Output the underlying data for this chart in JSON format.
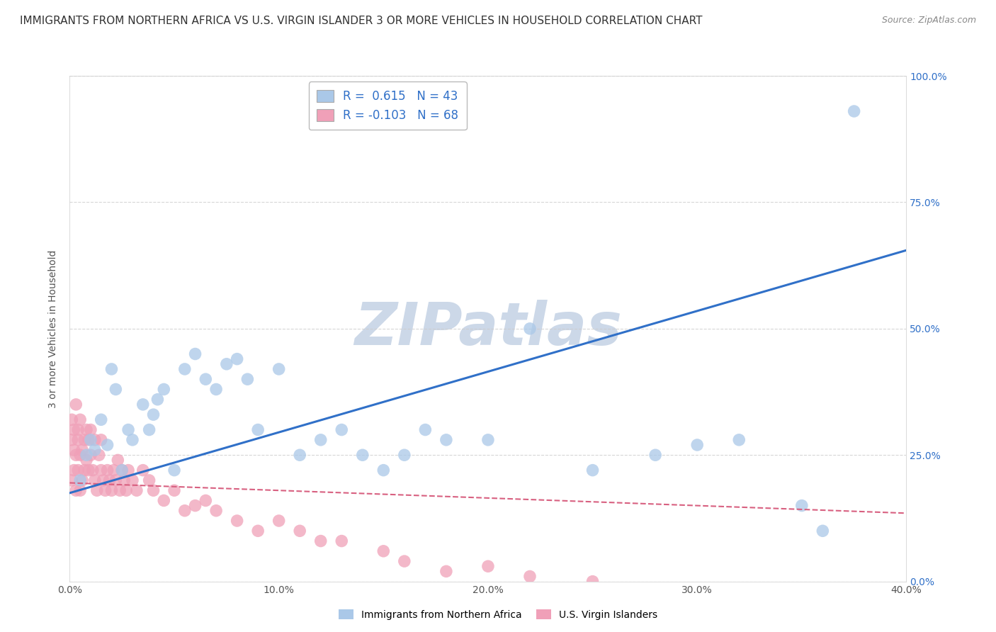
{
  "title": "IMMIGRANTS FROM NORTHERN AFRICA VS U.S. VIRGIN ISLANDER 3 OR MORE VEHICLES IN HOUSEHOLD CORRELATION CHART",
  "source": "Source: ZipAtlas.com",
  "ylabel": "3 or more Vehicles in Household",
  "xlim": [
    0.0,
    0.4
  ],
  "ylim": [
    0.0,
    1.0
  ],
  "xticks": [
    0.0,
    0.1,
    0.2,
    0.3,
    0.4
  ],
  "yticks": [
    0.0,
    0.25,
    0.5,
    0.75,
    1.0
  ],
  "xtick_labels": [
    "0.0%",
    "10.0%",
    "20.0%",
    "30.0%",
    "40.0%"
  ],
  "ytick_labels_right": [
    "0.0%",
    "25.0%",
    "50.0%",
    "75.0%",
    "100.0%"
  ],
  "series1_name": "Immigrants from Northern Africa",
  "series1_color": "#aac8e8",
  "series1_R": "0.615",
  "series1_N": "43",
  "series1_line_color": "#3070c8",
  "series2_name": "U.S. Virgin Islanders",
  "series2_color": "#f0a0b8",
  "series2_R": "-0.103",
  "series2_N": "68",
  "series2_line_color": "#d86080",
  "series2_line_style": "--",
  "background_color": "#ffffff",
  "watermark": "ZIPatlas",
  "watermark_color": "#ccd8e8",
  "grid_color": "#cccccc",
  "grid_style": "--",
  "legend_R_color": "#3070c8",
  "legend_fontsize": 12,
  "title_fontsize": 11,
  "series1_line_x0": 0.0,
  "series1_line_y0": 0.175,
  "series1_line_x1": 0.4,
  "series1_line_y1": 0.655,
  "series2_line_x0": 0.0,
  "series2_line_y0": 0.195,
  "series2_line_x1": 0.4,
  "series2_line_y1": 0.135,
  "series1_x": [
    0.005,
    0.008,
    0.01,
    0.012,
    0.015,
    0.018,
    0.02,
    0.022,
    0.025,
    0.028,
    0.03,
    0.035,
    0.038,
    0.04,
    0.042,
    0.045,
    0.05,
    0.055,
    0.06,
    0.065,
    0.07,
    0.075,
    0.08,
    0.085,
    0.09,
    0.1,
    0.11,
    0.12,
    0.13,
    0.14,
    0.15,
    0.16,
    0.17,
    0.18,
    0.2,
    0.22,
    0.25,
    0.28,
    0.3,
    0.32,
    0.35,
    0.36,
    0.375
  ],
  "series1_y": [
    0.2,
    0.25,
    0.28,
    0.26,
    0.32,
    0.27,
    0.42,
    0.38,
    0.22,
    0.3,
    0.28,
    0.35,
    0.3,
    0.33,
    0.36,
    0.38,
    0.22,
    0.42,
    0.45,
    0.4,
    0.38,
    0.43,
    0.44,
    0.4,
    0.3,
    0.42,
    0.25,
    0.28,
    0.3,
    0.25,
    0.22,
    0.25,
    0.3,
    0.28,
    0.28,
    0.5,
    0.22,
    0.25,
    0.27,
    0.28,
    0.15,
    0.1,
    0.93
  ],
  "series2_x": [
    0.001,
    0.001,
    0.001,
    0.002,
    0.002,
    0.002,
    0.003,
    0.003,
    0.003,
    0.004,
    0.004,
    0.004,
    0.005,
    0.005,
    0.005,
    0.006,
    0.006,
    0.007,
    0.007,
    0.008,
    0.008,
    0.009,
    0.009,
    0.01,
    0.01,
    0.011,
    0.012,
    0.012,
    0.013,
    0.014,
    0.015,
    0.015,
    0.016,
    0.017,
    0.018,
    0.019,
    0.02,
    0.021,
    0.022,
    0.023,
    0.024,
    0.025,
    0.026,
    0.027,
    0.028,
    0.03,
    0.032,
    0.035,
    0.038,
    0.04,
    0.045,
    0.05,
    0.055,
    0.06,
    0.065,
    0.07,
    0.08,
    0.09,
    0.1,
    0.11,
    0.12,
    0.13,
    0.15,
    0.16,
    0.18,
    0.2,
    0.22,
    0.25
  ],
  "series2_y": [
    0.28,
    0.32,
    0.2,
    0.26,
    0.22,
    0.3,
    0.25,
    0.35,
    0.18,
    0.28,
    0.22,
    0.3,
    0.25,
    0.18,
    0.32,
    0.2,
    0.26,
    0.28,
    0.22,
    0.24,
    0.3,
    0.22,
    0.28,
    0.25,
    0.3,
    0.22,
    0.2,
    0.28,
    0.18,
    0.25,
    0.22,
    0.28,
    0.2,
    0.18,
    0.22,
    0.2,
    0.18,
    0.22,
    0.2,
    0.24,
    0.18,
    0.22,
    0.2,
    0.18,
    0.22,
    0.2,
    0.18,
    0.22,
    0.2,
    0.18,
    0.16,
    0.18,
    0.14,
    0.15,
    0.16,
    0.14,
    0.12,
    0.1,
    0.12,
    0.1,
    0.08,
    0.08,
    0.06,
    0.04,
    0.02,
    0.03,
    0.01,
    0.0
  ]
}
